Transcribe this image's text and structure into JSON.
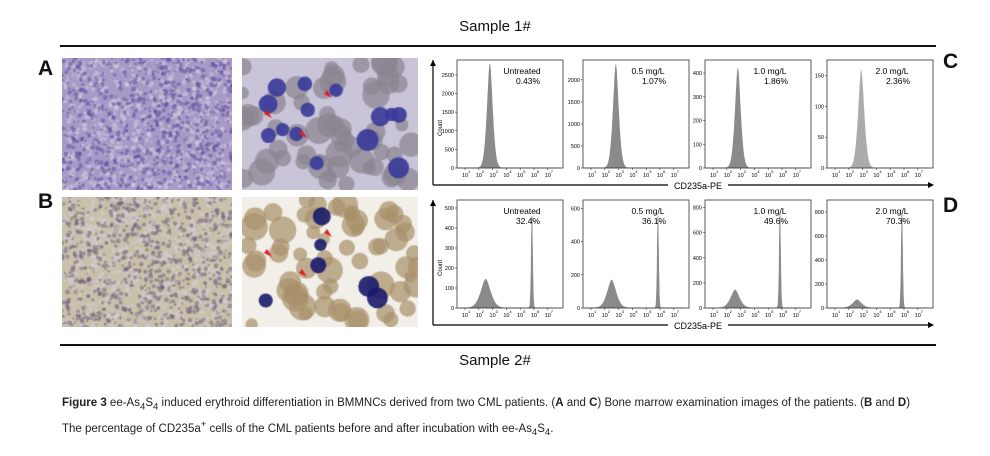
{
  "sample1_title": "Sample 1#",
  "sample2_title": "Sample 2#",
  "panel_labels": {
    "A": "A",
    "B": "B",
    "C": "C",
    "D": "D"
  },
  "caption": {
    "figure_label": "Figure 3",
    "text_1": " ee-As",
    "text_2": " induced erythroid differentiation in BMMNCs derived from two CML patients. (",
    "A_and_C_a": "A",
    "and_1": " and ",
    "A_and_C_c": "C",
    "text_3": ") Bone marrow examination images of the patients. (",
    "B_and_D_b": "B",
    "and_2": " and ",
    "B_and_D_d": "D",
    "text_4": ")",
    "text_5": "The percentage of CD235a",
    "sup_plus": "+",
    "text_6": " cells of the CML patients before and after incubation with ee-As",
    "sub4": "4",
    "S": "S"
  },
  "micrographs": [
    {
      "panel": "A",
      "type": "low-magnification bone marrow smear",
      "colors": [
        "#a89ac8",
        "#5a4a9a"
      ]
    },
    {
      "panel": "A",
      "type": "high-magnification with red arrows",
      "colors": [
        "#c9c4d8",
        "#3a3a9a"
      ]
    },
    {
      "panel": "B",
      "type": "low-magnification bone marrow smear",
      "colors": [
        "#c8c0a8",
        "#6a5a7a"
      ]
    },
    {
      "panel": "B",
      "type": "high-magnification with red arrows",
      "colors": [
        "#f2efe8",
        "#1a1a6a"
      ]
    }
  ],
  "chart_data": [
    {
      "type": "area",
      "panel": "C",
      "xlabel": "CD235a-PE",
      "ylabel": "Count",
      "x_scale": "log",
      "x_ticks": [
        "10^1",
        "10^2",
        "10^3",
        "10^4",
        "10^5",
        "10^6",
        "10^7"
      ],
      "fill_color": "#8a8a8a",
      "histograms": [
        {
          "label": "Untreated",
          "percent": "0.43%",
          "yticks": [
            0,
            500,
            1000,
            1500,
            2000,
            2500
          ],
          "ymax": 2900,
          "peaks": [
            {
              "log10_x": 2.8,
              "count": 2800,
              "width": 0.28
            }
          ]
        },
        {
          "label": "0.5 mg/L",
          "percent": "1.07%",
          "yticks": [
            0,
            500,
            1000,
            1500,
            2000
          ],
          "ymax": 2450,
          "peaks": [
            {
              "log10_x": 2.8,
              "count": 2350,
              "width": 0.28
            }
          ]
        },
        {
          "label": "1.0 mg/L",
          "percent": "1.86%",
          "yticks": [
            0,
            100,
            200,
            300,
            400
          ],
          "ymax": 455,
          "peaks": [
            {
              "log10_x": 2.8,
              "count": 420,
              "width": 0.28
            }
          ]
        },
        {
          "label": "2.0 mg/L",
          "percent": "2.36%",
          "yticks": [
            0,
            50,
            100,
            150
          ],
          "ymax": 175,
          "peaks": [
            {
              "log10_x": 2.9,
              "count": 158,
              "width": 0.3
            }
          ],
          "fill_color": "#ababab"
        }
      ]
    },
    {
      "type": "area",
      "panel": "D",
      "xlabel": "CD235a-PE",
      "ylabel": "Count",
      "x_scale": "log",
      "x_ticks": [
        "10^1",
        "10^2",
        "10^3",
        "10^4",
        "10^5",
        "10^6",
        "10^7"
      ],
      "fill_color": "#8a8a8a",
      "histograms": [
        {
          "label": "Untreated",
          "percent": "32.4%",
          "yticks": [
            0,
            100,
            200,
            300,
            400,
            500
          ],
          "ymax": 540,
          "peaks": [
            {
              "log10_x": 2.5,
              "count": 145,
              "width": 0.5
            },
            {
              "log10_x": 5.85,
              "count": 480,
              "width": 0.07
            }
          ]
        },
        {
          "label": "0.5 mg/L",
          "percent": "36.1%",
          "yticks": [
            0,
            200,
            400,
            600
          ],
          "ymax": 650,
          "peaks": [
            {
              "log10_x": 2.5,
              "count": 170,
              "width": 0.45
            },
            {
              "log10_x": 5.85,
              "count": 580,
              "width": 0.07
            }
          ]
        },
        {
          "label": "1.0 mg/L",
          "percent": "49.6%",
          "yticks": [
            0,
            200,
            400,
            600,
            800
          ],
          "ymax": 860,
          "peaks": [
            {
              "log10_x": 2.6,
              "count": 145,
              "width": 0.45
            },
            {
              "log10_x": 5.85,
              "count": 790,
              "width": 0.07
            }
          ]
        },
        {
          "label": "2.0 mg/L",
          "percent": "70.3%",
          "yticks": [
            0,
            200,
            400,
            600,
            800
          ],
          "ymax": 900,
          "peaks": [
            {
              "log10_x": 2.6,
              "count": 70,
              "width": 0.45
            },
            {
              "log10_x": 5.85,
              "count": 830,
              "width": 0.07
            }
          ]
        }
      ]
    }
  ]
}
